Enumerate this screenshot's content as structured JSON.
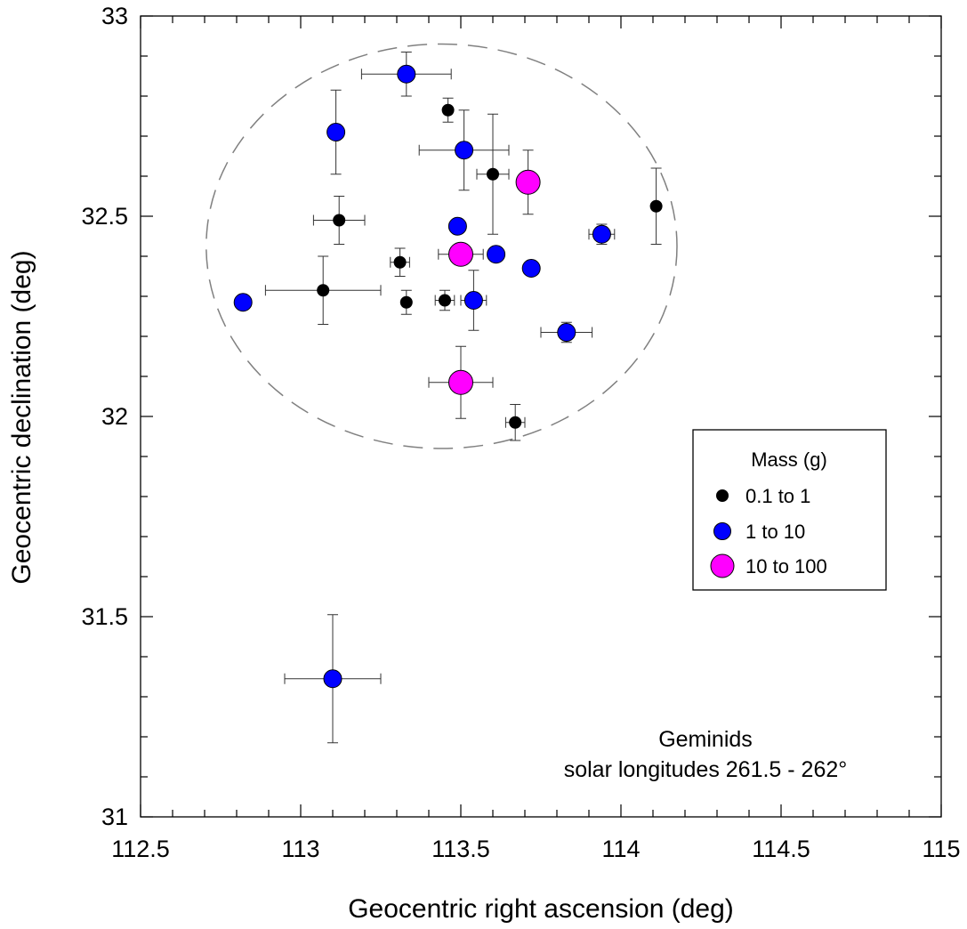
{
  "chart_data": {
    "type": "scatter",
    "title": "",
    "xlabel": "Geocentric right ascension (deg)",
    "ylabel": "Geocentric declination (deg)",
    "xlim": [
      112.5,
      115
    ],
    "ylim": [
      31,
      33
    ],
    "x_ticks": [
      "112.5",
      "113",
      "113.5",
      "114",
      "114.5",
      "115"
    ],
    "y_ticks": [
      "31",
      "31.5",
      "32",
      "32.5",
      "33"
    ],
    "grid": false,
    "legend": {
      "title": "Mass (g)",
      "position": "right-middle",
      "entries": [
        "0.1 to 1",
        "1 to 10",
        "10 to 100"
      ]
    },
    "annotation": {
      "line1": "Geminids",
      "line2": "solar longitudes 261.5 - 262°"
    },
    "radiant_circle": {
      "center_ra": 113.44,
      "center_dec": 32.425,
      "radius_ra": 0.735,
      "radius_dec": 0.505,
      "style": "dashed"
    },
    "series": [
      {
        "name": "0.1 to 1",
        "color": "#000000",
        "points": [
          {
            "x": 113.46,
            "y": 32.765,
            "ex": 0.0,
            "ey": 0.03
          },
          {
            "x": 113.6,
            "y": 32.605,
            "ex": 0.05,
            "ey": 0.15
          },
          {
            "x": 113.12,
            "y": 32.49,
            "ex": 0.08,
            "ey": 0.06
          },
          {
            "x": 113.31,
            "y": 32.385,
            "ex": 0.03,
            "ey": 0.035
          },
          {
            "x": 113.07,
            "y": 32.315,
            "ex": 0.18,
            "ey": 0.085
          },
          {
            "x": 113.33,
            "y": 32.285,
            "ex": 0.0,
            "ey": 0.03
          },
          {
            "x": 113.45,
            "y": 32.29,
            "ex": 0.03,
            "ey": 0.025
          },
          {
            "x": 113.67,
            "y": 31.985,
            "ex": 0.03,
            "ey": 0.045
          },
          {
            "x": 114.11,
            "y": 32.525,
            "ex": 0.0,
            "ey": 0.095
          }
        ]
      },
      {
        "name": "1 to 10",
        "color": "#0000ff",
        "points": [
          {
            "x": 113.33,
            "y": 32.855,
            "ex": 0.14,
            "ey": 0.055
          },
          {
            "x": 113.11,
            "y": 32.71,
            "ex": 0.0,
            "ey": 0.105
          },
          {
            "x": 113.51,
            "y": 32.665,
            "ex": 0.14,
            "ey": 0.1
          },
          {
            "x": 113.49,
            "y": 32.475,
            "ex": 0.0,
            "ey": 0.0
          },
          {
            "x": 113.61,
            "y": 32.405,
            "ex": 0.0,
            "ey": 0.0
          },
          {
            "x": 113.72,
            "y": 32.37,
            "ex": 0.0,
            "ey": 0.015
          },
          {
            "x": 113.54,
            "y": 32.29,
            "ex": 0.04,
            "ey": 0.075
          },
          {
            "x": 113.94,
            "y": 32.455,
            "ex": 0.04,
            "ey": 0.025
          },
          {
            "x": 113.83,
            "y": 32.21,
            "ex": 0.08,
            "ey": 0.025
          },
          {
            "x": 112.82,
            "y": 32.285,
            "ex": 0.0,
            "ey": 0.0
          },
          {
            "x": 113.1,
            "y": 31.345,
            "ex": 0.15,
            "ey": 0.16
          }
        ]
      },
      {
        "name": "10 to 100",
        "color": "#ff00ff",
        "points": [
          {
            "x": 113.71,
            "y": 32.585,
            "ex": 0.0,
            "ey": 0.08
          },
          {
            "x": 113.5,
            "y": 32.405,
            "ex": 0.07,
            "ey": 0.0
          },
          {
            "x": 113.5,
            "y": 32.085,
            "ex": 0.1,
            "ey": 0.09
          }
        ]
      }
    ]
  }
}
